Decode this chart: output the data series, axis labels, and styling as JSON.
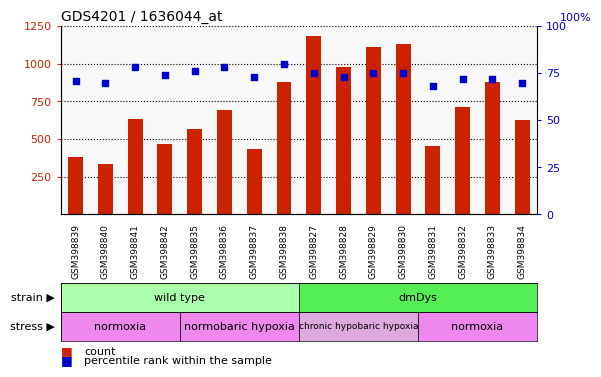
{
  "title": "GDS4201 / 1636044_at",
  "samples": [
    "GSM398839",
    "GSM398840",
    "GSM398841",
    "GSM398842",
    "GSM398835",
    "GSM398836",
    "GSM398837",
    "GSM398838",
    "GSM398827",
    "GSM398828",
    "GSM398829",
    "GSM398830",
    "GSM398831",
    "GSM398832",
    "GSM398833",
    "GSM398834"
  ],
  "counts": [
    380,
    335,
    630,
    465,
    565,
    690,
    435,
    880,
    1185,
    980,
    1110,
    1130,
    455,
    710,
    880,
    625
  ],
  "percentile_ranks": [
    71,
    70,
    78,
    74,
    76,
    78,
    73,
    80,
    75,
    73,
    75,
    75,
    68,
    72,
    72,
    70
  ],
  "bar_color": "#cc2200",
  "dot_color": "#0000cc",
  "ylim_left": [
    0,
    1250
  ],
  "ylim_right": [
    0,
    100
  ],
  "yticks_left": [
    250,
    500,
    750,
    1000,
    1250
  ],
  "yticks_right": [
    0,
    25,
    50,
    75,
    100
  ],
  "right_axis_top_label": "100%",
  "strain_groups": [
    {
      "label": "wild type",
      "start": 0,
      "end": 8,
      "color": "#aaffaa"
    },
    {
      "label": "dmDys",
      "start": 8,
      "end": 16,
      "color": "#55ee55"
    }
  ],
  "stress_groups": [
    {
      "label": "normoxia",
      "start": 0,
      "end": 4,
      "color": "#ee88ee"
    },
    {
      "label": "normobaric hypoxia",
      "start": 4,
      "end": 8,
      "color": "#ee88ee"
    },
    {
      "label": "chronic hypobaric hypoxia",
      "start": 8,
      "end": 12,
      "color": "#ddaadd"
    },
    {
      "label": "normoxia",
      "start": 12,
      "end": 16,
      "color": "#ee88ee"
    }
  ],
  "legend": [
    {
      "label": "count",
      "color": "#cc2200"
    },
    {
      "label": "percentile rank within the sample",
      "color": "#0000cc"
    }
  ],
  "tick_color_left": "#cc2200",
  "tick_color_right": "#0000cc",
  "plot_bg": "#f8f8f8",
  "strain_label": "strain",
  "stress_label": "stress"
}
